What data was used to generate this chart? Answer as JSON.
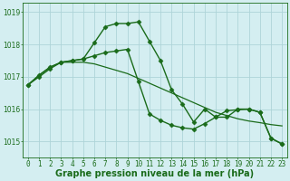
{
  "background_color": "#d4eef1",
  "grid_color": "#aed4d8",
  "line_color": "#1a6b1a",
  "xlabel": "Graphe pression niveau de la mer (hPa)",
  "xlabel_fontsize": 7.0,
  "tick_fontsize": 5.5,
  "ylim": [
    1014.5,
    1019.3
  ],
  "yticks": [
    1015,
    1016,
    1017,
    1018,
    1019
  ],
  "xlim": [
    -0.5,
    23.5
  ],
  "xticks": [
    0,
    1,
    2,
    3,
    4,
    5,
    6,
    7,
    8,
    9,
    10,
    11,
    12,
    13,
    14,
    15,
    16,
    17,
    18,
    19,
    20,
    21,
    22,
    23
  ],
  "series": [
    {
      "y": [
        1016.75,
        1017.0,
        1017.25,
        1017.45,
        1017.5,
        1017.55,
        1018.05,
        1018.55,
        1018.65,
        1018.65,
        1018.7,
        1018.1,
        1017.5,
        1016.6,
        1016.15,
        1015.6,
        1016.0,
        1015.75,
        1015.75,
        1016.0,
        1016.0,
        1015.9,
        1015.1,
        1014.92
      ],
      "marker": "D",
      "markersize": 2.5,
      "linewidth": 1.0
    },
    {
      "y": [
        1016.75,
        1017.05,
        1017.3,
        1017.45,
        1017.45,
        1017.45,
        1017.4,
        1017.3,
        1017.2,
        1017.1,
        1016.95,
        1016.8,
        1016.65,
        1016.5,
        1016.35,
        1016.2,
        1016.05,
        1015.9,
        1015.8,
        1015.7,
        1015.63,
        1015.58,
        1015.52,
        1015.48
      ],
      "marker": null,
      "markersize": 0,
      "linewidth": 0.9
    },
    {
      "y": [
        1016.75,
        1017.05,
        1017.3,
        1017.45,
        1017.5,
        1017.55,
        1017.65,
        1017.75,
        1017.8,
        1017.85,
        1016.85,
        1015.85,
        1015.65,
        1015.5,
        1015.42,
        1015.38,
        1015.55,
        1015.75,
        1015.95,
        1015.98,
        1016.0,
        1015.9,
        1015.1,
        1014.92
      ],
      "marker": "D",
      "markersize": 2.5,
      "linewidth": 1.0
    }
  ]
}
